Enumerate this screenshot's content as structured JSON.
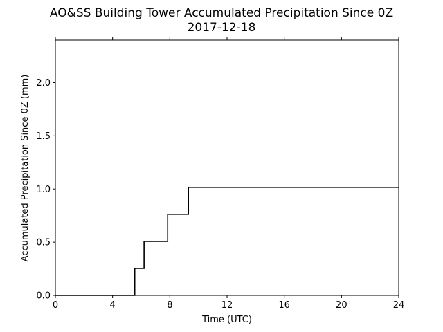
{
  "chart_data": {
    "type": "line",
    "title": "AO&SS Building Tower Accumulated Precipitation Since 0Z",
    "subtitle": "2017-12-18",
    "xlabel": "Time (UTC)",
    "ylabel": "Accumulated Precipitation Since 0Z (mm)",
    "xlim": [
      0,
      24
    ],
    "ylim": [
      0,
      2.4
    ],
    "x_ticks": [
      0,
      4,
      8,
      12,
      16,
      20,
      24
    ],
    "x_tick_labels": [
      "0",
      "4",
      "8",
      "12",
      "16",
      "20",
      "24"
    ],
    "y_ticks": [
      0,
      0.5,
      1.0,
      1.5,
      2.0
    ],
    "y_tick_labels": [
      "0.0",
      "0.5",
      "1.0",
      "1.5",
      "2.0"
    ],
    "grid": false,
    "line_color": "#000000",
    "step": true,
    "series": [
      {
        "x": [
          0,
          5.55,
          5.55,
          6.2,
          6.2,
          7.85,
          7.85,
          9.3,
          9.3,
          24
        ],
        "y": [
          0,
          0,
          0.254,
          0.254,
          0.508,
          0.508,
          0.762,
          0.762,
          1.016,
          1.016
        ]
      }
    ]
  }
}
